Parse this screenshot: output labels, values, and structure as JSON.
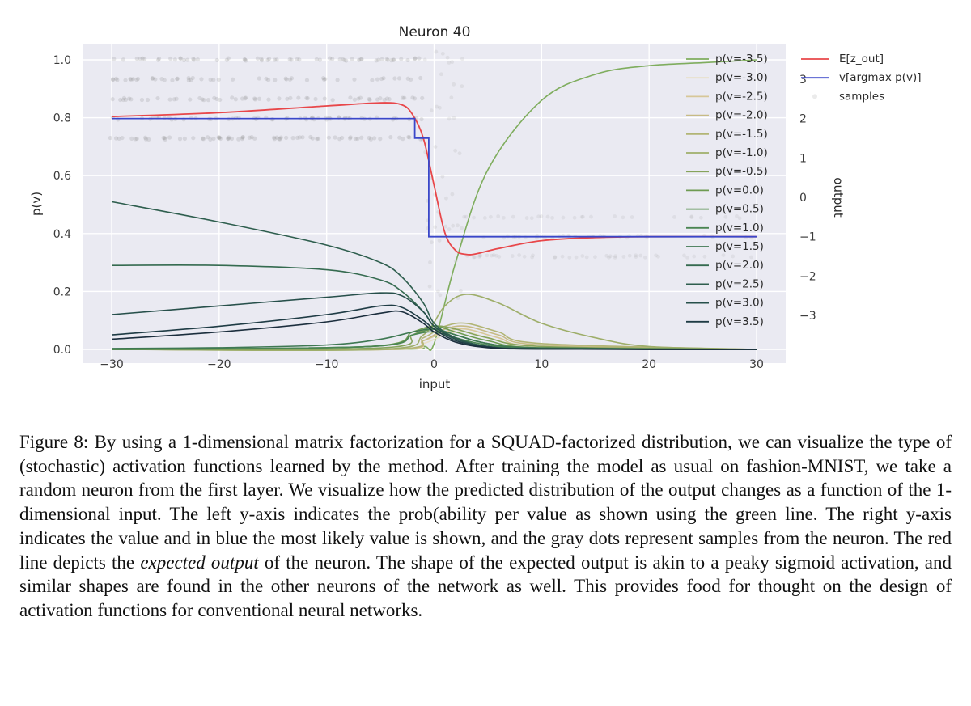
{
  "chart_data": {
    "type": "line",
    "title": "Neuron 40",
    "xlabel": "input",
    "ylabel": "p(v)",
    "y2label": "output",
    "xlim": [
      -30,
      30
    ],
    "ylim": [
      0,
      1.0
    ],
    "y2lim": [
      -3.9,
      3.9
    ],
    "x_ticks": [
      "−30",
      "−20",
      "−10",
      "0",
      "10",
      "20",
      "30"
    ],
    "y_ticks": [
      "0.0",
      "0.2",
      "0.4",
      "0.6",
      "0.8",
      "1.0"
    ],
    "y2_ticks": [
      "3",
      "2",
      "1",
      "0",
      "−1",
      "−2",
      "−3"
    ],
    "grid": true,
    "legend_prob_placement": "right",
    "legend_output_placement": "top-right",
    "prob_series": [
      {
        "name": "p(v=-3.5)",
        "v": -3.5,
        "color": "#7fad5e",
        "x": [
          -30,
          -4,
          -1,
          0,
          2,
          5,
          10,
          15,
          20,
          25,
          30
        ],
        "y": [
          0.0,
          0.0,
          0.01,
          0.02,
          0.3,
          0.62,
          0.86,
          0.95,
          0.98,
          0.99,
          1.0
        ]
      },
      {
        "name": "p(v=-3.0)",
        "v": -3.0,
        "color": "#e8e0c6",
        "x": [
          -30,
          -4,
          -1,
          1,
          3,
          6,
          10,
          30
        ],
        "y": [
          0.0,
          0.0,
          0.02,
          0.05,
          0.06,
          0.03,
          0.01,
          0.0
        ]
      },
      {
        "name": "p(v=-2.5)",
        "v": -2.5,
        "color": "#d7c798",
        "x": [
          -30,
          -4,
          -1,
          1,
          3,
          6,
          10,
          30
        ],
        "y": [
          0.0,
          0.0,
          0.03,
          0.06,
          0.07,
          0.04,
          0.01,
          0.0
        ]
      },
      {
        "name": "p(v=-2.0)",
        "v": -2.0,
        "color": "#c7bb85",
        "x": [
          -30,
          -4,
          -1,
          1,
          3,
          6,
          10,
          30
        ],
        "y": [
          0.0,
          0.0,
          0.03,
          0.07,
          0.08,
          0.05,
          0.015,
          0.0
        ]
      },
      {
        "name": "p(v=-1.5)",
        "v": -1.5,
        "color": "#b2b575",
        "x": [
          -30,
          -4,
          -1,
          1,
          3,
          6,
          10,
          30
        ],
        "y": [
          0.0,
          0.0,
          0.04,
          0.08,
          0.09,
          0.06,
          0.02,
          0.0
        ]
      },
      {
        "name": "p(v=-1.0)",
        "v": -1.0,
        "color": "#9eae6a",
        "x": [
          -30,
          -5,
          -1,
          1,
          3,
          6,
          10,
          15,
          20,
          30
        ],
        "y": [
          0.0,
          0.0,
          0.05,
          0.15,
          0.19,
          0.16,
          0.09,
          0.04,
          0.01,
          0.0
        ]
      },
      {
        "name": "p(v=-0.5)",
        "v": -0.5,
        "color": "#86a35b",
        "x": [
          -30,
          -5,
          -2,
          0,
          2,
          5,
          10,
          30
        ],
        "y": [
          0.0,
          0.005,
          0.05,
          0.08,
          0.07,
          0.04,
          0.01,
          0.0
        ]
      },
      {
        "name": "p(v=0.0)",
        "v": 0.0,
        "color": "#6e9b52",
        "x": [
          -30,
          -6,
          -2,
          0,
          2,
          5,
          10,
          30
        ],
        "y": [
          0.0,
          0.01,
          0.06,
          0.08,
          0.06,
          0.03,
          0.005,
          0.0
        ]
      },
      {
        "name": "p(v=0.5)",
        "v": 0.5,
        "color": "#5a9152",
        "x": [
          -30,
          -6,
          -2,
          0,
          2,
          5,
          10,
          30
        ],
        "y": [
          0.0,
          0.01,
          0.05,
          0.07,
          0.05,
          0.02,
          0.005,
          0.0
        ]
      },
      {
        "name": "p(v=1.0)",
        "v": 1.0,
        "color": "#4a8552",
        "x": [
          -30,
          -6,
          -2,
          0,
          2,
          5,
          10,
          30
        ],
        "y": [
          0.0,
          0.01,
          0.05,
          0.06,
          0.04,
          0.015,
          0.003,
          0.0
        ]
      },
      {
        "name": "p(v=1.5)",
        "v": 1.5,
        "color": "#3e7852",
        "x": [
          -30,
          -20,
          -10,
          -5,
          -2,
          0,
          2,
          5,
          10,
          30
        ],
        "y": [
          0.003,
          0.006,
          0.015,
          0.035,
          0.06,
          0.07,
          0.05,
          0.02,
          0.005,
          0.0
        ]
      },
      {
        "name": "p(v=2.0)",
        "v": 2.0,
        "color": "#356b50",
        "x": [
          -30,
          -20,
          -10,
          -5,
          -3,
          -1,
          0,
          2,
          5,
          10,
          30
        ],
        "y": [
          0.29,
          0.29,
          0.275,
          0.24,
          0.2,
          0.13,
          0.08,
          0.04,
          0.01,
          0.002,
          0.0
        ]
      },
      {
        "name": "p(v=2.5)",
        "v": 2.5,
        "color": "#2e5e4e",
        "x": [
          -30,
          -20,
          -10,
          -5,
          -3,
          -1,
          0,
          2,
          5,
          10,
          30
        ],
        "y": [
          0.51,
          0.44,
          0.36,
          0.3,
          0.25,
          0.16,
          0.09,
          0.04,
          0.01,
          0.002,
          0.0
        ]
      },
      {
        "name": "p(v=3.0)",
        "v": 3.0,
        "color": "#27504b",
        "x": [
          -30,
          -20,
          -10,
          -5,
          -3,
          -1,
          0,
          2,
          5,
          10,
          30
        ],
        "y": [
          0.12,
          0.15,
          0.18,
          0.195,
          0.185,
          0.13,
          0.08,
          0.035,
          0.01,
          0.002,
          0.0
        ]
      },
      {
        "name": "p(v=3.5)",
        "v": 3.5,
        "color": "#1f3c45",
        "x": [
          -30,
          -20,
          -10,
          -5,
          -3,
          -1,
          0,
          2,
          5,
          10,
          30
        ],
        "y": [
          0.05,
          0.08,
          0.12,
          0.15,
          0.145,
          0.1,
          0.07,
          0.03,
          0.008,
          0.001,
          0.0
        ]
      },
      {
        "name": "",
        "v": 4.0,
        "color": "#1b2e3d",
        "x": [
          -30,
          -20,
          -10,
          -5,
          -3,
          -1,
          0,
          2,
          5,
          10,
          30
        ],
        "y": [
          0.035,
          0.06,
          0.095,
          0.125,
          0.13,
          0.09,
          0.06,
          0.025,
          0.006,
          0.001,
          0.0
        ]
      }
    ],
    "output_series": [
      {
        "name": "E[z_out]",
        "color": "#e8474a",
        "x": [
          -30,
          -20,
          -10,
          -5,
          -3,
          -2,
          -1,
          0,
          1,
          2,
          3,
          4,
          6,
          10,
          15,
          20,
          30
        ],
        "y": [
          2.05,
          2.15,
          2.32,
          2.4,
          2.35,
          2.1,
          1.5,
          0.3,
          -0.9,
          -1.35,
          -1.45,
          -1.43,
          -1.3,
          -1.1,
          -1.02,
          -1.0,
          -1.0
        ]
      },
      {
        "name": "v[argmax p(v)]",
        "color": "#3a47c9",
        "x": [
          -30,
          -1.8,
          -1.8,
          -0.5,
          -0.5,
          30
        ],
        "y": [
          2.0,
          2.0,
          1.5,
          1.5,
          -1.0,
          -1.0
        ]
      },
      {
        "name": "samples",
        "color": "#9a9a9a"
      }
    ]
  },
  "caption": {
    "lead": "Figure 8: By using a 1-dimensional matrix factorization for a SQUAD-factorized distribution, we can visualize the type of (stochastic) activation functions learned by the method. After training the model as usual on fashion-MNIST, we take a random neuron from the first layer. We visualize how the predicted distribution of the output changes as a function of the 1-dimensional input. The left y-axis indicates the prob(ability per value as shown using the green line. The right y-axis indicates the value and in blue the most likely value is shown, and the gray dots represent samples from the neuron. The red line depicts the ",
    "emph": "expected output",
    "tail": " of the neuron. The shape of the expected output is akin to a peaky sigmoid activation, and similar shapes are found in the other neurons of the network as well. This provides food for thought on the design of activation functions for conventional neural networks."
  }
}
